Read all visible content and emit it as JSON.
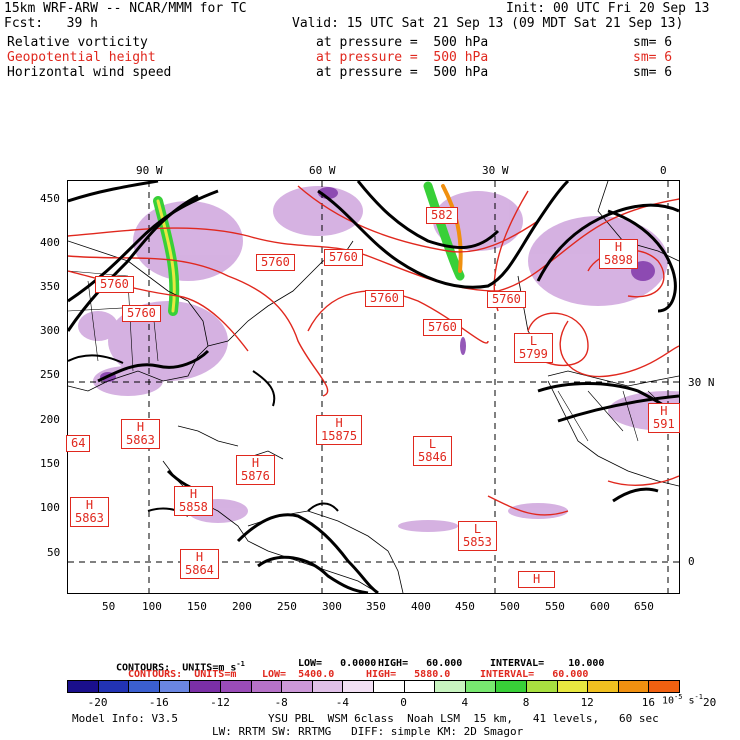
{
  "header": {
    "model": "15km WRF-ARW -- NCAR/MMM for TC",
    "init": "Init: 00 UTC Fri 20 Sep 13",
    "fcst": "Fcst:   39 h",
    "valid": "Valid: 15 UTC Sat 21 Sep 13 (09 MDT Sat 21 Sep 13)"
  },
  "fields": [
    {
      "name": "Relative vorticity",
      "level": "at pressure =  500 hPa",
      "sm": "sm= 6",
      "color": "#000000"
    },
    {
      "name": "Geopotential height",
      "level": "at pressure =  500 hPa",
      "sm": "sm= 6",
      "color": "#e0281e"
    },
    {
      "name": "Horizontal wind speed",
      "level": "at pressure =  500 hPa",
      "sm": "sm= 6",
      "color": "#000000"
    }
  ],
  "map": {
    "top_lon_labels": [
      "90 W",
      "60 W",
      "30 W",
      "0"
    ],
    "right_lat_labels": [
      "30 N",
      "0"
    ],
    "y_ticks": [
      "450",
      "400",
      "350",
      "300",
      "250",
      "200",
      "150",
      "100",
      "50"
    ],
    "x_ticks": [
      "50",
      "100",
      "150",
      "200",
      "250",
      "300",
      "350",
      "400",
      "450",
      "500",
      "550",
      "600",
      "650"
    ],
    "height_labels": [
      {
        "kind": "",
        "value": "5760"
      },
      {
        "kind": "",
        "value": "5760"
      },
      {
        "kind": "",
        "value": "5760"
      },
      {
        "kind": "",
        "value": "5760"
      },
      {
        "kind": "",
        "value": "5760"
      },
      {
        "kind": "",
        "value": "5760"
      },
      {
        "kind": "",
        "value": "5760"
      },
      {
        "kind": "",
        "value": "582"
      },
      {
        "kind": "H",
        "value": "5898"
      },
      {
        "kind": "L",
        "value": "5799"
      },
      {
        "kind": "H",
        "value": "5863"
      },
      {
        "kind": "H",
        "value": "15875"
      },
      {
        "kind": "L",
        "value": "5846"
      },
      {
        "kind": "H",
        "value": "5876"
      },
      {
        "kind": "H",
        "value": "5863"
      },
      {
        "kind": "H",
        "value": "5858"
      },
      {
        "kind": "L",
        "value": "5853"
      },
      {
        "kind": "H",
        "value": "5864"
      },
      {
        "kind": "H",
        "value": "591"
      },
      {
        "kind": "",
        "value": "64"
      },
      {
        "kind": "H",
        "value": ""
      }
    ]
  },
  "contours": {
    "black": {
      "label": "CONTOURS:  UNITS=m s",
      "sup": "-1",
      "low": "LOW=   0.0000",
      "high": "HIGH=   60.000",
      "interval": "INTERVAL=    10.000"
    },
    "red": {
      "label": "CONTOURS:  UNITS=m",
      "low": "LOW=  5400.0",
      "high": "HIGH=   5880.0",
      "interval": "INTERVAL=   60.000"
    }
  },
  "colorbar": {
    "colors": [
      "#1a0f8c",
      "#2233b4",
      "#3b5fd0",
      "#6a86e2",
      "#7b2fa6",
      "#9a4cb8",
      "#b672c8",
      "#cc98d8",
      "#e0c0e8",
      "#f2e0f4",
      "#ffffff",
      "#ffffff",
      "#c8f4c0",
      "#78e870",
      "#38d038",
      "#a8e040",
      "#e8e840",
      "#f0c020",
      "#f09010",
      "#f06010"
    ],
    "ticks": [
      "-20",
      "-16",
      "-12",
      "-8",
      "-4",
      "0",
      "4",
      "8",
      "12",
      "16",
      "20"
    ],
    "units": "10",
    "units_exp": "-5",
    "units_tail": " s",
    "units_exp2": "-1"
  },
  "footer": {
    "line1_left": "Model Info: V3.5",
    "line1_right": "YSU PBL  WSM 6class  Noah LSM  15 km,   41 levels,   60 sec",
    "line2": "LW: RRTM SW: RRTMG   DIFF: simple KM: 2D Smagor"
  }
}
